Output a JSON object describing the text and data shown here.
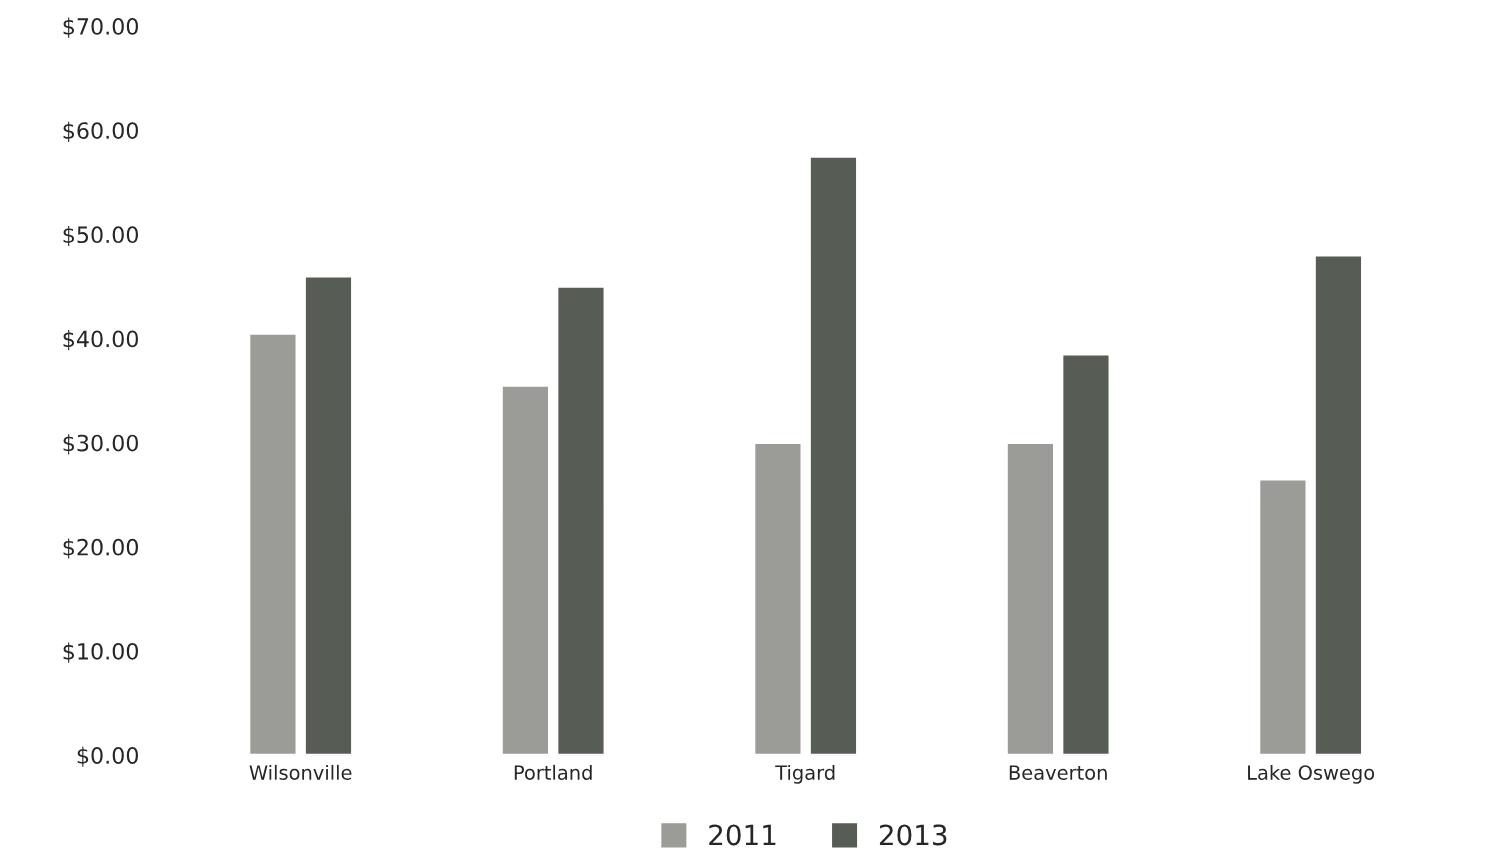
{
  "chart_data": {
    "type": "bar",
    "categories": [
      "Wilsonville",
      "Portland",
      "Tigard",
      "Beaverton",
      "Lake Oswego"
    ],
    "series": [
      {
        "name": "2011",
        "color": "#9b9c98",
        "values": [
          40.5,
          35.5,
          30,
          30,
          26.5
        ]
      },
      {
        "name": "2013",
        "color": "#575c55",
        "values": [
          46,
          45,
          57.5,
          38.5,
          48
        ]
      }
    ],
    "ylim": [
      0,
      70
    ],
    "yticks": [
      {
        "value": 0,
        "label": "$0.00"
      },
      {
        "value": 10,
        "label": "$10.00"
      },
      {
        "value": 20,
        "label": "$20.00"
      },
      {
        "value": 30,
        "label": "$30.00"
      },
      {
        "value": 40,
        "label": "$40.00"
      },
      {
        "value": 50,
        "label": "$50.00"
      },
      {
        "value": 60,
        "label": "$60.00"
      },
      {
        "value": 70,
        "label": "$70.00"
      }
    ],
    "legend": "bottom"
  }
}
